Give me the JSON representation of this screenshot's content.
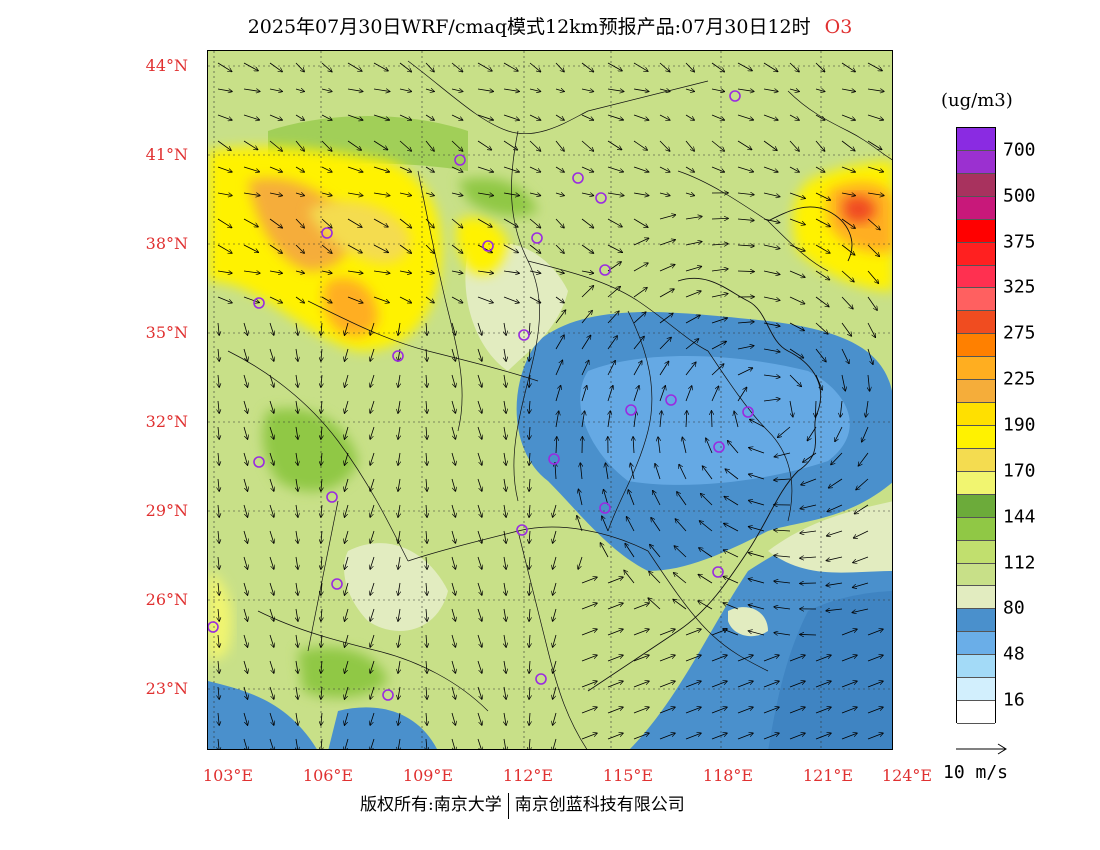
{
  "title": {
    "text": "2025年07月30日WRF/cmaq模式12km预报产品:07月30日12时",
    "species": "O3"
  },
  "map": {
    "lat_labels": [
      "44°N",
      "41°N",
      "38°N",
      "35°N",
      "32°N",
      "29°N",
      "26°N",
      "23°N"
    ],
    "lon_labels": [
      "103°E",
      "106°E",
      "109°E",
      "112°E",
      "115°E",
      "118°E",
      "121°E",
      "124°E"
    ],
    "station_marker_color": "#9a2be0"
  },
  "legend": {
    "unit": "(ug/m3)",
    "levels": [
      {
        "label": "700",
        "color": "#8a2be2"
      },
      {
        "label": "",
        "color": "#9b30d0"
      },
      {
        "label": "500",
        "color": "#a8325e"
      },
      {
        "label": "",
        "color": "#c8187a"
      },
      {
        "label": "375",
        "color": "#ff0000"
      },
      {
        "label": "",
        "color": "#ff2020"
      },
      {
        "label": "325",
        "color": "#ff3050"
      },
      {
        "label": "",
        "color": "#ff6060"
      },
      {
        "label": "275",
        "color": "#f04c20"
      },
      {
        "label": "",
        "color": "#ff8000"
      },
      {
        "label": "225",
        "color": "#ffae20"
      },
      {
        "label": "",
        "color": "#f5ad3a"
      },
      {
        "label": "190",
        "color": "#ffe000"
      },
      {
        "label": "",
        "color": "#fff200"
      },
      {
        "label": "170",
        "color": "#f4dc50"
      },
      {
        "label": "",
        "color": "#f1f570"
      },
      {
        "label": "144",
        "color": "#6cab3a"
      },
      {
        "label": "",
        "color": "#90c845"
      },
      {
        "label": "112",
        "color": "#c1df6e"
      },
      {
        "label": "",
        "color": "#c8e088"
      },
      {
        "label": "80",
        "color": "#e2ecc0"
      },
      {
        "label": "",
        "color": "#4a90cc"
      },
      {
        "label": "48",
        "color": "#6aaee8"
      },
      {
        "label": "",
        "color": "#a3daf7"
      },
      {
        "label": "16",
        "color": "#d2effd"
      },
      {
        "label": "",
        "color": "#ffffff"
      }
    ]
  },
  "wind_reference": {
    "label": "10 m/s"
  },
  "copyright": {
    "left": "版权所有:南京大学",
    "right": "南京创蓝科技有限公司"
  }
}
